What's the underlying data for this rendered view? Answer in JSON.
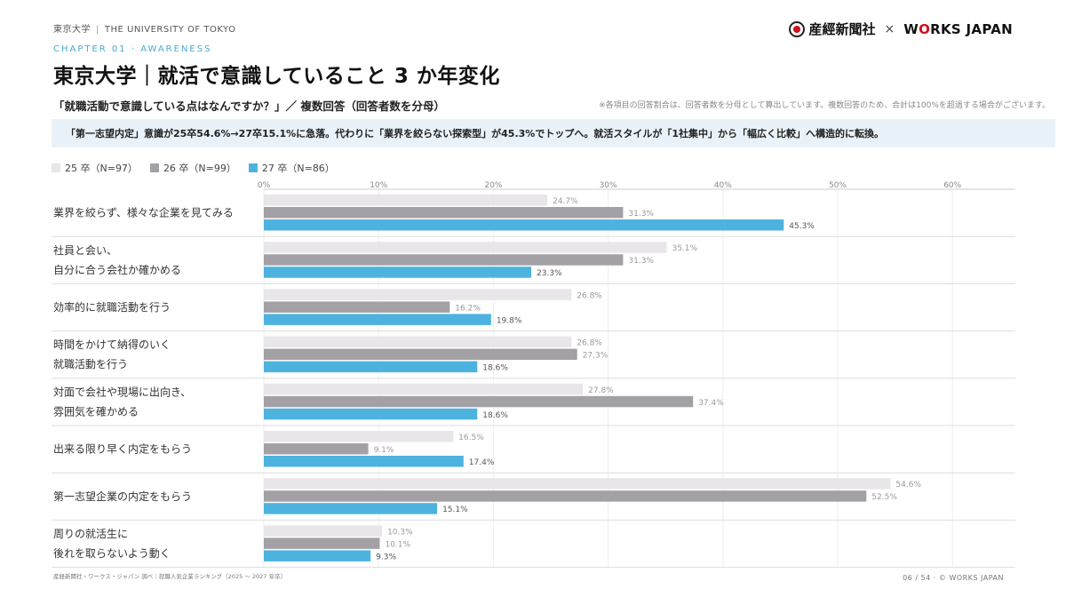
{
  "header": {
    "org": "東京大学",
    "org_en": "THE UNIVERSITY OF TOKYO",
    "logo_left": "産經新聞社",
    "logo_x": "×",
    "logo_right_a": "W",
    "logo_right_o": "O",
    "logo_right_b": "RKS JAPAN"
  },
  "chapter": "CHAPTER 01 · AWARENESS",
  "title": "東京大学｜就活で意識していること 3 か年変化",
  "question": "「就職活動で意識している点はなんですか？」／ 複数回答（回答者数を分母）",
  "note": "※各項目の回答割合は、回答者数を分母として算出しています。複数回答のため、合計は100%を超過する場合がございます。",
  "insight": "「第一志望内定」意識が25卒54.6%→27卒15.1%に急落。代わりに「業界を絞らない探索型」が45.3%でトップへ。就活スタイルが「1社集中」から「幅広く比較」へ構造的に転換。",
  "colors": {
    "s25": "#e8e6e8",
    "s26": "#a3a1a6",
    "s27": "#4db3de",
    "accent": "#4aa9d6"
  },
  "chart_data": {
    "type": "bar",
    "orientation": "horizontal",
    "xlim": [
      0,
      65
    ],
    "ticks": [
      0,
      10,
      20,
      30,
      40,
      50,
      60
    ],
    "tick_labels": [
      "0%",
      "10%",
      "20%",
      "30%",
      "40%",
      "50%",
      "60%"
    ],
    "legend_position": "top-left",
    "categories": [
      [
        "業界を絞らず、様々な企業を見てみる"
      ],
      [
        "社員と会い、",
        "自分に合う会社か確かめる"
      ],
      [
        "効率的に就職活動を行う"
      ],
      [
        "時間をかけて納得のいく",
        "就職活動を行う"
      ],
      [
        "対面で会社や現場に出向き、",
        "雰囲気を確かめる"
      ],
      [
        "出来る限り早く内定をもらう"
      ],
      [
        "第一志望企業の内定をもらう"
      ],
      [
        "周りの就活生に",
        "後れを取らないよう動く"
      ]
    ],
    "series": [
      {
        "name": "25 卒（N=97）",
        "values": [
          24.7,
          35.1,
          26.8,
          26.8,
          27.8,
          16.5,
          54.6,
          10.3
        ],
        "labels": [
          "24.7%",
          "35.1%",
          "26.8%",
          "26.8%",
          "27.8%",
          "16.5%",
          "54.6%",
          "10.3%"
        ]
      },
      {
        "name": "26 卒（N=99）",
        "values": [
          31.3,
          31.3,
          16.2,
          27.3,
          37.4,
          9.1,
          52.5,
          10.1
        ],
        "labels": [
          "31.3%",
          "31.3%",
          "16.2%",
          "27.3%",
          "37.4%",
          "9.1%",
          "52.5%",
          "10.1%"
        ]
      },
      {
        "name": "27 卒（N=86）",
        "values": [
          45.3,
          23.3,
          19.8,
          18.6,
          18.6,
          17.4,
          15.1,
          9.3
        ],
        "labels": [
          "45.3%",
          "23.3%",
          "19.8%",
          "18.6%",
          "18.6%",
          "17.4%",
          "15.1%",
          "9.3%"
        ]
      }
    ]
  },
  "footer": {
    "source": "産経新聞社・ワークス・ジャパン 調べ｜就職人気企業ランキング（2025 〜 2027 年卒）",
    "page": "06 / 54 · © WORKS JAPAN"
  }
}
